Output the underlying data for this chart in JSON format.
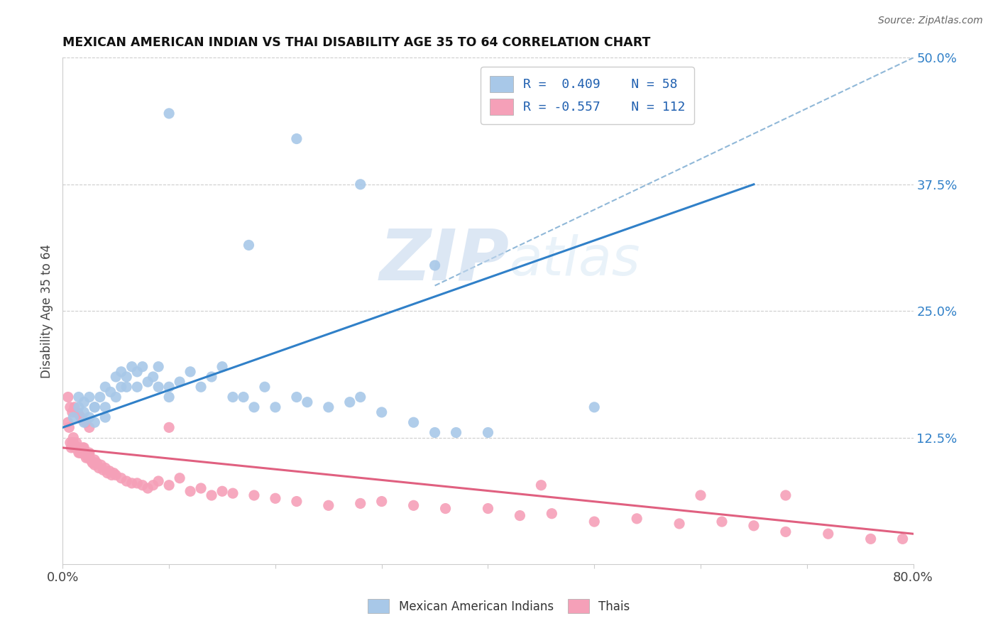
{
  "title": "MEXICAN AMERICAN INDIAN VS THAI DISABILITY AGE 35 TO 64 CORRELATION CHART",
  "source": "Source: ZipAtlas.com",
  "ylabel": "Disability Age 35 to 64",
  "xlim": [
    0.0,
    0.8
  ],
  "ylim": [
    0.0,
    0.5
  ],
  "xtick_positions": [
    0.0,
    0.1,
    0.2,
    0.3,
    0.4,
    0.5,
    0.6,
    0.7,
    0.8
  ],
  "xticklabels": [
    "0.0%",
    "",
    "",
    "",
    "",
    "",
    "",
    "",
    "80.0%"
  ],
  "ytick_positions": [
    0.0,
    0.125,
    0.25,
    0.375,
    0.5
  ],
  "yticklabels_right": [
    "",
    "12.5%",
    "25.0%",
    "37.5%",
    "50.0%"
  ],
  "legend_line1": "R =  0.409    N = 58",
  "legend_line2": "R = -0.557    N = 112",
  "blue_color": "#a8c8e8",
  "pink_color": "#f5a0b8",
  "blue_line_color": "#3080c8",
  "pink_line_color": "#e06080",
  "dashed_line_color": "#90b8d8",
  "watermark_zip": "ZIP",
  "watermark_atlas": "atlas",
  "background_color": "#ffffff",
  "blue_line_x0": 0.0,
  "blue_line_y0": 0.135,
  "blue_line_x1": 0.65,
  "blue_line_y1": 0.375,
  "pink_line_x0": 0.0,
  "pink_line_y0": 0.115,
  "pink_line_x1": 0.8,
  "pink_line_y1": 0.03,
  "dash_line_x0": 0.35,
  "dash_line_y0": 0.275,
  "dash_line_x1": 0.8,
  "dash_line_y1": 0.5,
  "blue_x": [
    0.01,
    0.015,
    0.015,
    0.02,
    0.02,
    0.02,
    0.025,
    0.025,
    0.03,
    0.03,
    0.03,
    0.035,
    0.04,
    0.04,
    0.04,
    0.045,
    0.05,
    0.05,
    0.055,
    0.055,
    0.06,
    0.06,
    0.065,
    0.07,
    0.07,
    0.075,
    0.08,
    0.085,
    0.09,
    0.09,
    0.1,
    0.1,
    0.11,
    0.12,
    0.13,
    0.14,
    0.15,
    0.16,
    0.17,
    0.18,
    0.19,
    0.2,
    0.22,
    0.23,
    0.25,
    0.27,
    0.28,
    0.3,
    0.33,
    0.35,
    0.37,
    0.4
  ],
  "blue_y": [
    0.145,
    0.155,
    0.165,
    0.16,
    0.15,
    0.14,
    0.165,
    0.145,
    0.155,
    0.155,
    0.14,
    0.165,
    0.155,
    0.145,
    0.175,
    0.17,
    0.185,
    0.165,
    0.19,
    0.175,
    0.185,
    0.175,
    0.195,
    0.19,
    0.175,
    0.195,
    0.18,
    0.185,
    0.175,
    0.195,
    0.175,
    0.165,
    0.18,
    0.19,
    0.175,
    0.185,
    0.195,
    0.165,
    0.165,
    0.155,
    0.175,
    0.155,
    0.165,
    0.16,
    0.155,
    0.16,
    0.165,
    0.15,
    0.14,
    0.13,
    0.13,
    0.13
  ],
  "blue_outlier_x": [
    0.1,
    0.175,
    0.22,
    0.28,
    0.35,
    0.5
  ],
  "blue_outlier_y": [
    0.445,
    0.315,
    0.42,
    0.375,
    0.295,
    0.155
  ],
  "pink_x": [
    0.005,
    0.006,
    0.007,
    0.008,
    0.009,
    0.01,
    0.01,
    0.011,
    0.012,
    0.013,
    0.013,
    0.014,
    0.015,
    0.015,
    0.016,
    0.017,
    0.018,
    0.019,
    0.02,
    0.02,
    0.021,
    0.022,
    0.023,
    0.024,
    0.025,
    0.025,
    0.027,
    0.028,
    0.03,
    0.03,
    0.032,
    0.034,
    0.036,
    0.038,
    0.04,
    0.042,
    0.044,
    0.046,
    0.048,
    0.05,
    0.055,
    0.06,
    0.065,
    0.07,
    0.075,
    0.08,
    0.085,
    0.09,
    0.1,
    0.11,
    0.12,
    0.13,
    0.14,
    0.15,
    0.16,
    0.18,
    0.2,
    0.22,
    0.25,
    0.28,
    0.3,
    0.33,
    0.36,
    0.4,
    0.43,
    0.46,
    0.5,
    0.54,
    0.58,
    0.62,
    0.65,
    0.68,
    0.72,
    0.76,
    0.79
  ],
  "pink_y": [
    0.14,
    0.135,
    0.12,
    0.115,
    0.12,
    0.125,
    0.12,
    0.115,
    0.115,
    0.12,
    0.115,
    0.115,
    0.11,
    0.115,
    0.11,
    0.11,
    0.11,
    0.115,
    0.115,
    0.11,
    0.108,
    0.105,
    0.108,
    0.105,
    0.11,
    0.108,
    0.102,
    0.1,
    0.103,
    0.098,
    0.1,
    0.095,
    0.098,
    0.093,
    0.095,
    0.09,
    0.092,
    0.088,
    0.09,
    0.088,
    0.085,
    0.082,
    0.08,
    0.08,
    0.078,
    0.075,
    0.078,
    0.082,
    0.078,
    0.085,
    0.072,
    0.075,
    0.068,
    0.072,
    0.07,
    0.068,
    0.065,
    0.062,
    0.058,
    0.06,
    0.062,
    0.058,
    0.055,
    0.055,
    0.048,
    0.05,
    0.042,
    0.045,
    0.04,
    0.042,
    0.038,
    0.032,
    0.03,
    0.025,
    0.025
  ],
  "pink_high_x": [
    0.005,
    0.007,
    0.009,
    0.011,
    0.013,
    0.015,
    0.017,
    0.019,
    0.022,
    0.025,
    0.1,
    0.45,
    0.6,
    0.68
  ],
  "pink_high_y": [
    0.165,
    0.155,
    0.15,
    0.155,
    0.15,
    0.148,
    0.145,
    0.142,
    0.14,
    0.135,
    0.135,
    0.078,
    0.068,
    0.068
  ]
}
